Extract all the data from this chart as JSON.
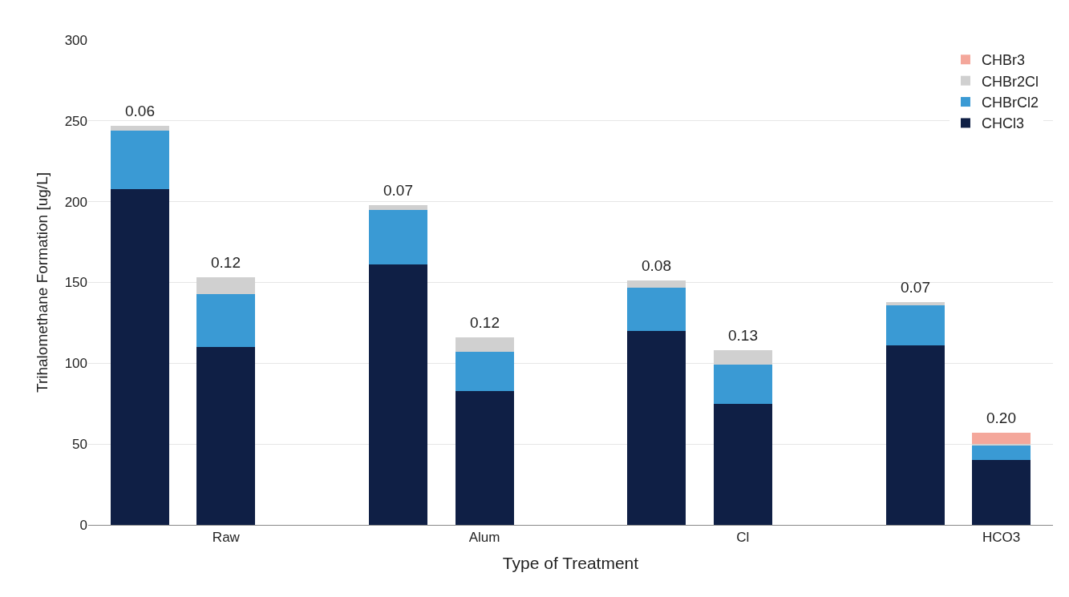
{
  "chart_data": {
    "type": "bar",
    "stacked": true,
    "xlabel": "Type of Treatment",
    "ylabel": "Trihalomethane Formation [ug/L]",
    "categories": [
      null,
      "Raw",
      null,
      "Alum",
      null,
      "Cl",
      null,
      "HCO3"
    ],
    "series": [
      {
        "name": "CHCl3",
        "color": "#0f1f45",
        "values": [
          208,
          110,
          161,
          83,
          120,
          75,
          111,
          40
        ]
      },
      {
        "name": "CHBrCl2",
        "color": "#3a9ad4",
        "values": [
          36,
          33,
          34,
          24,
          27,
          24,
          25,
          9
        ]
      },
      {
        "name": "CHBr2Cl",
        "color": "#d0d0d0",
        "values": [
          3,
          10,
          3,
          9,
          4,
          9,
          2,
          1
        ]
      },
      {
        "name": "CHBr3",
        "color": "#f4a79b",
        "values": [
          0,
          0,
          0,
          0,
          0,
          0,
          0,
          7
        ]
      }
    ],
    "annotations": [
      "0.06",
      "0.12",
      "0.07",
      "0.12",
      "0.08",
      "0.13",
      "0.07",
      "0.20"
    ],
    "ylim": [
      0,
      300
    ],
    "yticks": [
      0,
      50,
      100,
      150,
      200,
      250,
      300
    ],
    "grid": "y",
    "legend": "top right"
  }
}
